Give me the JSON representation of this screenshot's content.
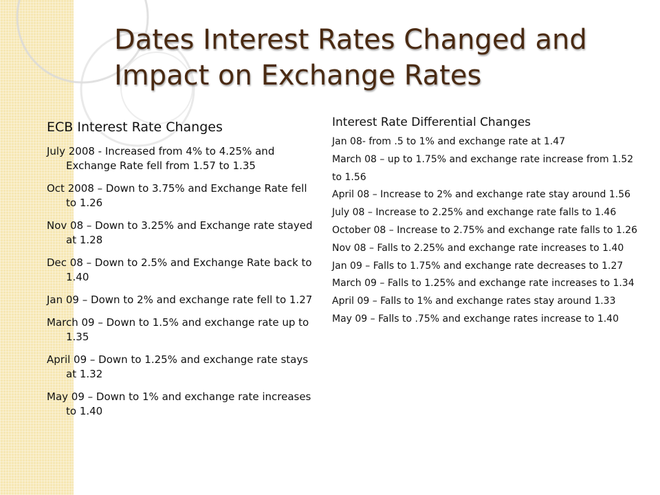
{
  "slide": {
    "title": "Dates Interest Rates Changed and Impact on Exchange Rates"
  },
  "ecb": {
    "heading": "ECB Interest Rate Changes",
    "items": [
      "July 2008 - Increased from 4% to 4.25% and Exchange Rate fell from 1.57 to 1.35",
      "Oct 2008 – Down to 3.75% and Exchange Rate fell to 1.26",
      "Nov 08 – Down to 3.25% and Exchange rate stayed at 1.28",
      "Dec 08 – Down to 2.5% and Exchange Rate back to 1.40",
      "Jan 09 – Down to 2% and exchange rate fell to 1.27",
      "March 09 – Down to 1.5% and exchange rate up to 1.35",
      "April 09 – Down to 1.25% and exchange rate stays at 1.32",
      "May 09 – Down to 1% and exchange rate increases to 1.40"
    ]
  },
  "differential": {
    "heading": "Interest Rate Differential Changes",
    "items": [
      "Jan 08- from .5 to 1% and exchange rate at 1.47",
      "March 08 – up to 1.75% and exchange rate increase from 1.52 to 1.56",
      "April 08 – Increase to 2% and exchange rate stay around 1.56",
      "July 08 – Increase to 2.25% and exchange rate falls to 1.46",
      "October 08 – Increase to 2.75% and exchange rate falls to 1.26",
      "Nov 08 – Falls to 2.25% and exchange rate increases to 1.40",
      "Jan 09 – Falls to 1.75% and exchange rate decreases to 1.27",
      "March 09 – Falls to 1.25% and exchange rate increases to 1.34",
      "April 09 – Falls to 1% and exchange rates stay around 1.33",
      "May 09 – Falls to .75% and exchange rates increase to 1.40"
    ]
  },
  "theme": {
    "title_color": "#4a2a12",
    "strip_color": "#f6e7b3",
    "ring_color": "#dcdcdc"
  }
}
